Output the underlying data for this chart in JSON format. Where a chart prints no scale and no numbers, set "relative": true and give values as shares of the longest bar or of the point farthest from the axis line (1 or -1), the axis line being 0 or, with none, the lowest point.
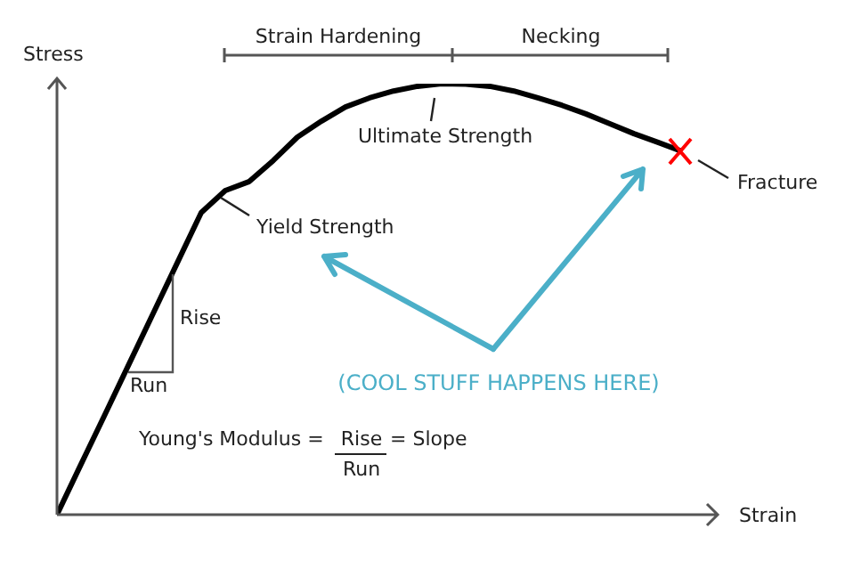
{
  "chart_data": {
    "type": "line",
    "relative": true,
    "xlabel": "Strain",
    "ylabel": "Stress",
    "legend": false,
    "grid": false,
    "tick_labels": false,
    "marker": "none",
    "line_style": "solid",
    "categories": [
      null,
      null,
      null,
      null,
      null,
      null,
      null,
      null,
      null,
      null,
      null,
      null,
      null,
      null,
      null,
      null,
      null,
      null,
      null,
      null,
      null,
      null,
      null,
      null,
      null,
      null,
      null
    ],
    "series": [
      {
        "color": "#000000",
        "values": [
          0,
          0.117,
          0.233,
          0.35,
          0.467,
          0.584,
          0.701,
          0.752,
          0.773,
          0.822,
          0.876,
          0.913,
          0.946,
          0.967,
          0.983,
          0.994,
          1,
          0.999,
          0.994,
          0.983,
          0.967,
          0.95,
          0.93,
          0.907,
          0.884,
          0.864,
          0.843
        ]
      }
    ],
    "annotations": [
      "Strain Hardening",
      "Necking",
      "Ultimate Strength",
      "Yield Strength",
      "Fracture",
      "Rise",
      "Run",
      "Young's Modulus =",
      "Rise",
      "Run",
      "= Slope",
      "(COOL STUFF HAPPENS HERE)"
    ]
  }
}
